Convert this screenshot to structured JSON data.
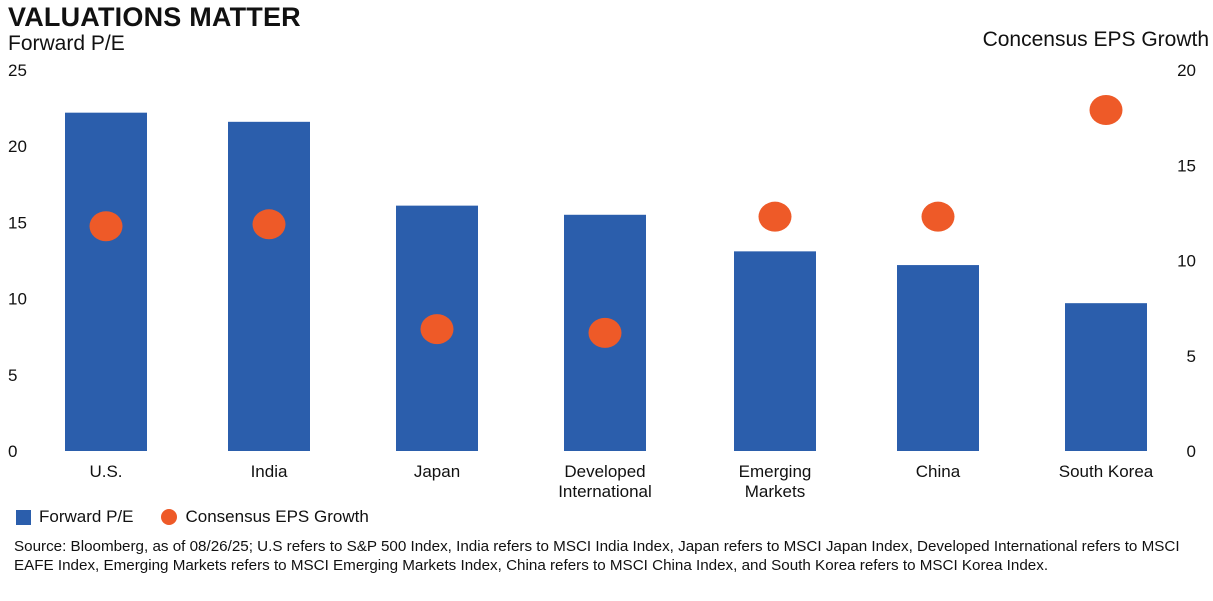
{
  "chart_data": {
    "type": "bar",
    "title": "VALUATIONS MATTER",
    "y_left_label": "Forward P/E",
    "y_right_label": "Concensus EPS Growth",
    "y_left_range": [
      0,
      25
    ],
    "y_left_ticks": [
      0,
      5,
      10,
      15,
      20,
      25
    ],
    "y_right_range": [
      0,
      20
    ],
    "y_right_ticks": [
      0,
      5,
      10,
      15,
      20
    ],
    "categories": [
      "U.S.",
      "India",
      "Japan",
      "Developed International",
      "Emerging Markets",
      "China",
      "South Korea"
    ],
    "category_lines": [
      [
        "U.S."
      ],
      [
        "India"
      ],
      [
        "Japan"
      ],
      [
        "Developed",
        "International"
      ],
      [
        "Emerging",
        "Markets"
      ],
      [
        "China"
      ],
      [
        "South Korea"
      ]
    ],
    "series": [
      {
        "name": "Forward P/E",
        "type": "bar",
        "axis": "left",
        "values": [
          22.2,
          21.6,
          16.1,
          15.5,
          13.1,
          12.2,
          9.7
        ]
      },
      {
        "name": "Consensus EPS Growth",
        "type": "scatter",
        "axis": "right",
        "values": [
          11.8,
          11.9,
          6.4,
          6.2,
          12.3,
          12.3,
          17.9
        ]
      }
    ],
    "colors": {
      "bar": "#2B5EAC",
      "dot": "#EE5A28"
    },
    "legend": [
      {
        "label": "Forward P/E"
      },
      {
        "label": "Consensus EPS Growth"
      }
    ]
  },
  "source": "Source: Bloomberg, as of 08/26/25; U.S refers to S&P 500 Index, India refers to MSCI India Index, Japan refers to MSCI Japan Index, Developed International refers to MSCI EAFE Index, Emerging Markets refers to MSCI Emerging Markets Index, China refers to MSCI China Index, and South Korea refers to MSCI Korea Index."
}
